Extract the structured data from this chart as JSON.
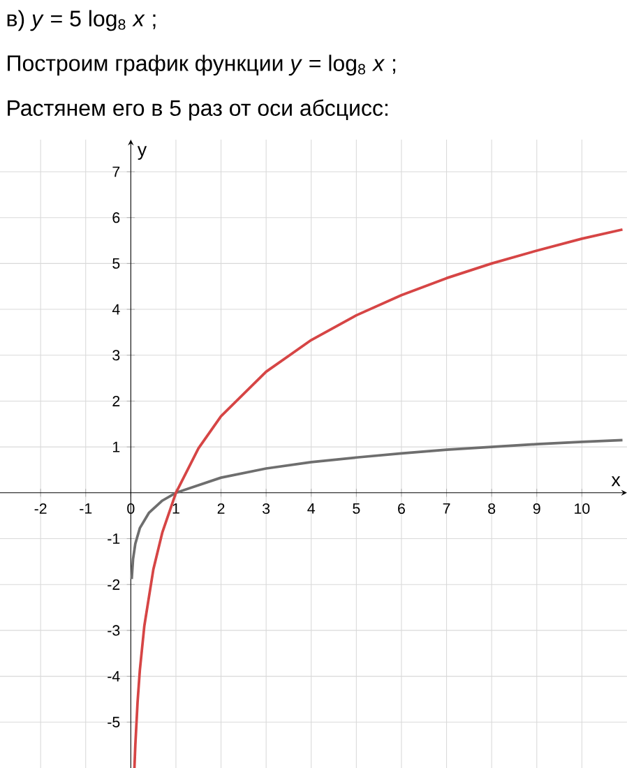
{
  "chart_data": {
    "type": "line",
    "title": "в) *y* = 5 log$_{8}$ *x* ;",
    "subtitle": "Построим график функции *y* = log$_{8}$ *x* ;",
    "annotations": [
      "Растянем его в 5 раз от оси абсцисс:"
    ],
    "xlabel": "x",
    "ylabel": "y",
    "xlim": [
      -2.9,
      11
    ],
    "ylim": [
      -6,
      7.7
    ],
    "xticks": [
      -2,
      -1,
      0,
      1,
      2,
      3,
      4,
      5,
      6,
      7,
      8,
      9,
      10
    ],
    "yticks": [
      -5,
      -4,
      -3,
      -2,
      -1,
      1,
      2,
      3,
      4,
      5,
      6,
      7
    ],
    "grid": true,
    "series": [
      {
        "color": "#6e6e6e",
        "x": [
          0.02,
          0.05,
          0.1,
          0.2,
          0.4,
          0.7,
          1,
          2,
          3,
          4,
          5,
          6,
          7,
          8,
          9,
          10,
          10.9
        ],
        "values": [
          -1.88,
          -1.44,
          -1.11,
          -0.77,
          -0.44,
          -0.17,
          0,
          0.33,
          0.53,
          0.67,
          0.77,
          0.86,
          0.94,
          1,
          1.06,
          1.11,
          1.15
        ]
      },
      {
        "color": "#d64545",
        "x": [
          0.08,
          0.1,
          0.15,
          0.2,
          0.3,
          0.5,
          0.7,
          1,
          1.5,
          2,
          3,
          4,
          5,
          6,
          7,
          8,
          9,
          10,
          10.9
        ],
        "values": [
          -6,
          -5.5,
          -4.56,
          -3.87,
          -2.9,
          -1.67,
          -0.86,
          0,
          0.97,
          1.67,
          2.64,
          3.33,
          3.87,
          4.31,
          4.68,
          5,
          5.28,
          5.54,
          5.74
        ]
      }
    ]
  }
}
